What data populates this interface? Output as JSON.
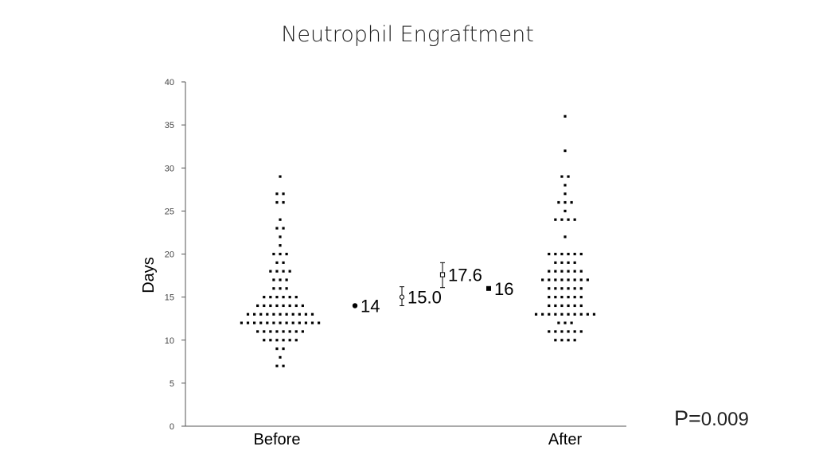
{
  "title": "Neutrophil Engraftment",
  "p_value": {
    "label": "P=",
    "value": "0.009"
  },
  "chart_data": {
    "type": "scatter",
    "title": "Neutrophil Engraftment",
    "ylabel": "Days",
    "xlabel": "",
    "ylim": [
      0,
      40
    ],
    "yticks": [
      0,
      5,
      10,
      15,
      20,
      25,
      30,
      35,
      40
    ],
    "categories": [
      "Before",
      "After"
    ],
    "series": [
      {
        "category": "Before",
        "values": [
          7,
          7,
          8,
          9,
          9,
          10,
          10,
          10,
          10,
          10,
          10,
          11,
          11,
          11,
          11,
          11,
          11,
          11,
          11,
          12,
          12,
          12,
          12,
          12,
          12,
          12,
          12,
          12,
          12,
          12,
          12,
          12,
          13,
          13,
          13,
          13,
          13,
          13,
          13,
          13,
          13,
          13,
          13,
          14,
          14,
          14,
          14,
          14,
          14,
          14,
          14,
          15,
          15,
          15,
          15,
          15,
          15,
          16,
          16,
          16,
          17,
          17,
          17,
          18,
          18,
          18,
          18,
          19,
          19,
          20,
          20,
          20,
          21,
          22,
          23,
          23,
          24,
          26,
          26,
          27,
          27,
          29
        ]
      },
      {
        "category": "After",
        "values": [
          10,
          10,
          10,
          10,
          11,
          11,
          11,
          11,
          11,
          11,
          12,
          12,
          12,
          13,
          13,
          13,
          13,
          13,
          13,
          13,
          13,
          13,
          13,
          14,
          14,
          14,
          14,
          14,
          14,
          15,
          15,
          15,
          15,
          15,
          15,
          16,
          16,
          16,
          16,
          16,
          16,
          17,
          17,
          17,
          17,
          17,
          17,
          17,
          17,
          18,
          18,
          18,
          18,
          18,
          18,
          19,
          19,
          19,
          19,
          20,
          20,
          20,
          20,
          20,
          20,
          22,
          24,
          24,
          24,
          24,
          25,
          26,
          26,
          26,
          27,
          28,
          29,
          29,
          32,
          36
        ]
      }
    ],
    "summaries": [
      {
        "label": "14",
        "value": 14,
        "marker": "filled-circle"
      },
      {
        "label": "15.0",
        "value": 15.0,
        "marker": "open-circle",
        "error": [
          14.0,
          16.2
        ]
      },
      {
        "label": "17.6",
        "value": 17.6,
        "marker": "open-square",
        "error": [
          16.1,
          19.0
        ]
      },
      {
        "label": "16",
        "value": 16,
        "marker": "filled-square"
      }
    ]
  }
}
